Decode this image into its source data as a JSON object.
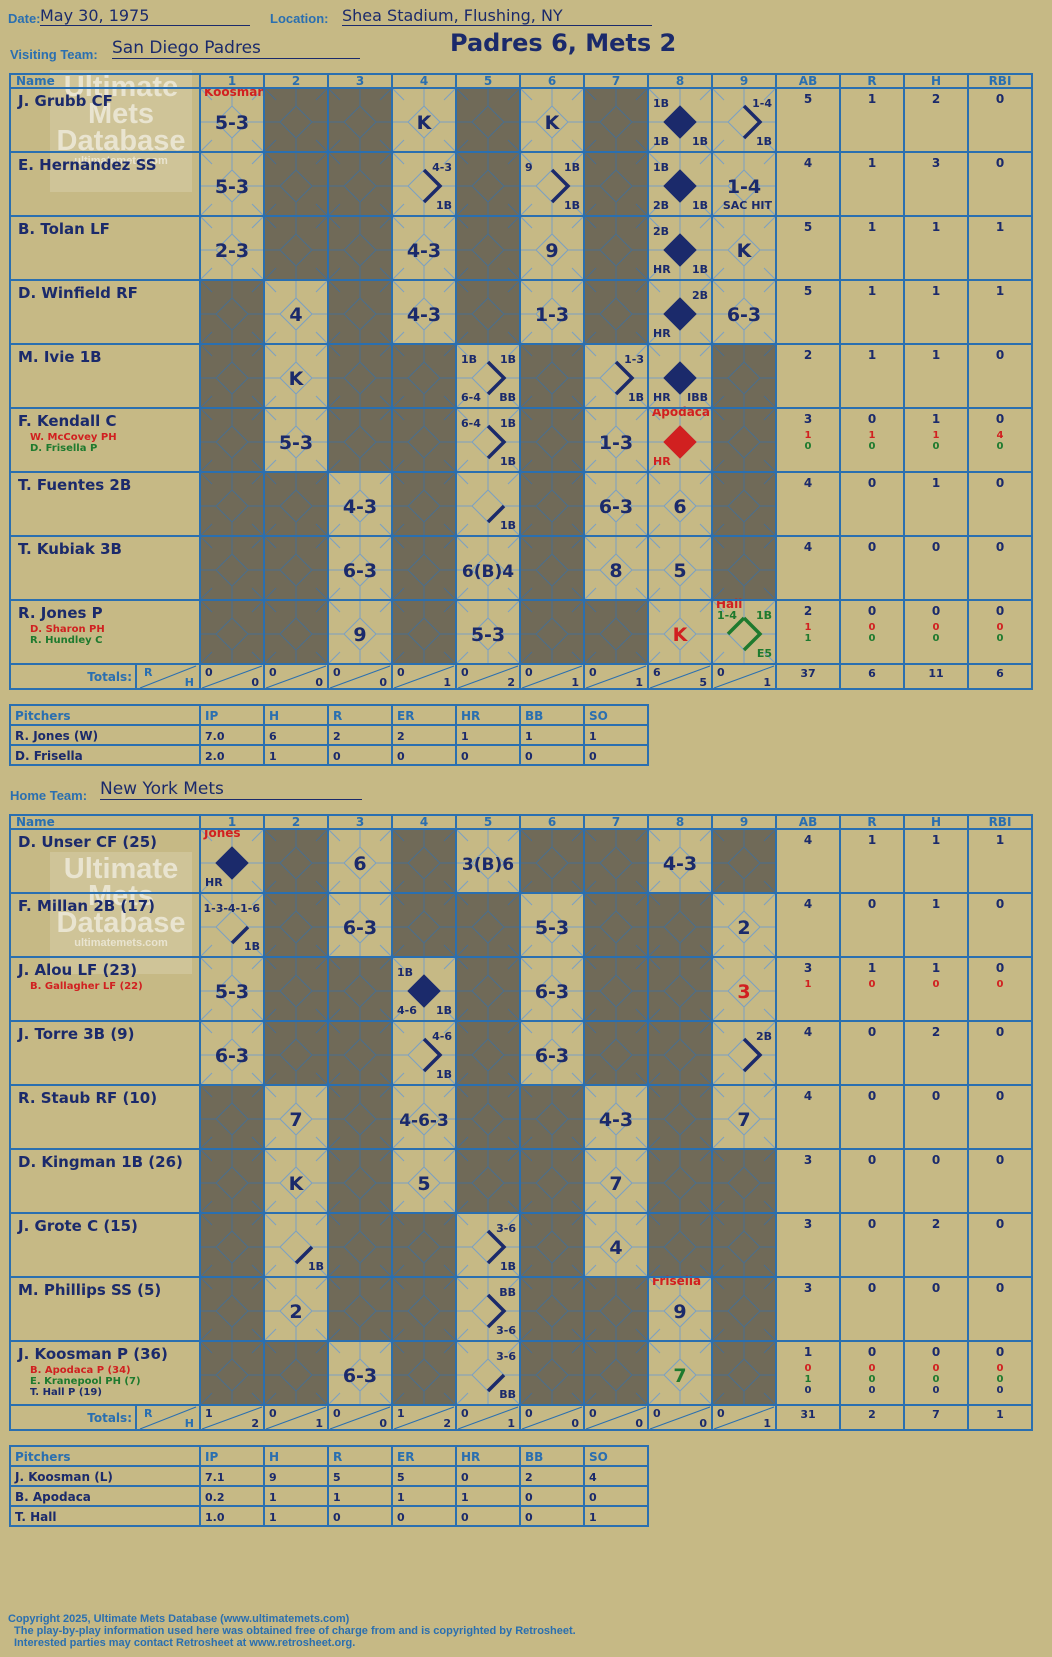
{
  "header": {
    "date_label": "Date:",
    "date": "May 30, 1975",
    "location_label": "Location:",
    "location": "Shea Stadium, Flushing, NY",
    "visiting_label": "Visiting Team:",
    "visiting_team": "San Diego Padres",
    "home_label": "Home Team:",
    "home_team": "New York Mets",
    "result": "Padres 6, Mets 2"
  },
  "watermark": [
    "Ultimate",
    "Mets",
    "Database",
    "ultimatemets.com"
  ],
  "columns": {
    "name": "Name",
    "innings": [
      "1",
      "2",
      "3",
      "4",
      "5",
      "6",
      "7",
      "8",
      "9"
    ],
    "stats": [
      "AB",
      "R",
      "H",
      "RBI"
    ],
    "totals": "Totals:",
    "r": "R",
    "h": "H"
  },
  "pitch_columns": [
    "Pitchers",
    "IP",
    "H",
    "R",
    "ER",
    "HR",
    "BB",
    "SO"
  ],
  "colors": {
    "background": "#c6b985",
    "grid": "#2a6fb0",
    "shade": "#706a58",
    "ink": "#1b2a6b",
    "red": "#d12020",
    "green": "#1e7a2e"
  },
  "visitors": {
    "players": [
      {
        "name": "J. Grubb CF",
        "subs": [],
        "stats": [
          [
            "5",
            "1",
            "2",
            "0"
          ]
        ]
      },
      {
        "name": "E. Hernandez SS",
        "subs": [],
        "stats": [
          [
            "4",
            "1",
            "3",
            "0"
          ]
        ]
      },
      {
        "name": "B. Tolan LF",
        "subs": [],
        "stats": [
          [
            "5",
            "1",
            "1",
            "1"
          ]
        ]
      },
      {
        "name": "D. Winfield RF",
        "subs": [],
        "stats": [
          [
            "5",
            "1",
            "1",
            "1"
          ]
        ]
      },
      {
        "name": "M. Ivie 1B",
        "subs": [],
        "stats": [
          [
            "2",
            "1",
            "1",
            "0"
          ]
        ]
      },
      {
        "name": "F. Kendall C",
        "subs": [
          {
            "name": "W. McCovey PH",
            "color": "red"
          },
          {
            "name": "D. Frisella P",
            "color": "green"
          }
        ],
        "stats": [
          [
            "3",
            "0",
            "1",
            "0"
          ],
          [
            "1",
            "1",
            "1",
            "4"
          ],
          [
            "0",
            "0",
            "0",
            "0"
          ]
        ]
      },
      {
        "name": "T. Fuentes 2B",
        "subs": [],
        "stats": [
          [
            "4",
            "0",
            "1",
            "0"
          ]
        ]
      },
      {
        "name": "T. Kubiak 3B",
        "subs": [],
        "stats": [
          [
            "4",
            "0",
            "0",
            "0"
          ]
        ]
      },
      {
        "name": "R. Jones P",
        "subs": [
          {
            "name": "D. Sharon PH",
            "color": "red"
          },
          {
            "name": "R. Hundley C",
            "color": "green"
          }
        ],
        "stats": [
          [
            "2",
            "0",
            "0",
            "0"
          ],
          [
            "1",
            "0",
            "0",
            "0"
          ],
          [
            "1",
            "0",
            "0",
            "0"
          ]
        ]
      }
    ],
    "grid": [
      [
        {
          "note": "Koosman",
          "nc": "red",
          "big": "5-3"
        },
        0,
        0,
        {
          "big": "K"
        },
        0,
        {
          "big": "K"
        },
        0,
        {
          "dia": "fill",
          "tl": "1B",
          "bl": "1B",
          "br": "1B"
        },
        {
          "path": "rp",
          "tr": "1-4",
          "br": "1B"
        }
      ],
      [
        {
          "big": "5-3"
        },
        0,
        0,
        {
          "path": "rp",
          "tr": "4-3",
          "br": "1B"
        },
        0,
        {
          "path": "rp",
          "tl": "9",
          "tr": "1B",
          "br": "1B"
        },
        0,
        {
          "dia": "fill",
          "tl": "1B",
          "bl": "2B",
          "br": "1B"
        },
        {
          "big": "1-4",
          "br": "SAC HIT"
        }
      ],
      [
        {
          "big": "2-3"
        },
        0,
        0,
        {
          "big": "4-3"
        },
        0,
        {
          "big": "9"
        },
        0,
        {
          "dia": "fill",
          "tl": "2B",
          "bl": "HR",
          "br": "1B"
        },
        {
          "big": "K"
        }
      ],
      [
        0,
        {
          "big": "4"
        },
        0,
        {
          "big": "4-3"
        },
        0,
        {
          "big": "1-3"
        },
        0,
        {
          "dia": "fill",
          "tr": "2B",
          "bl": "HR"
        },
        {
          "big": "6-3"
        }
      ],
      [
        0,
        {
          "big": "K"
        },
        0,
        0,
        {
          "path": "rp",
          "tl": "1B",
          "tr": "1B",
          "bl": "6-4",
          "br": "BB"
        },
        0,
        {
          "path": "rp",
          "tr": "1-3",
          "br": "1B"
        },
        {
          "dia": "fill",
          "bl": "HR",
          "br": "IBB"
        },
        0
      ],
      [
        0,
        {
          "big": "5-3"
        },
        0,
        0,
        {
          "path": "rp",
          "tl": "6-4",
          "tr": "1B",
          "br": "1B"
        },
        0,
        {
          "big": "1-3"
        },
        {
          "note": "Apodaca",
          "nc": "red",
          "dia": "red",
          "bl": "HR",
          "blc": "red"
        },
        0
      ],
      [
        0,
        0,
        {
          "big": "4-3"
        },
        0,
        {
          "path": "br",
          "br": "1B"
        },
        0,
        {
          "big": "6-3"
        },
        {
          "big": "6"
        },
        0
      ],
      [
        0,
        0,
        {
          "big": "6-3"
        },
        0,
        {
          "big": "6(B)4"
        },
        0,
        {
          "big": "8"
        },
        {
          "big": "5"
        },
        0
      ],
      [
        0,
        0,
        {
          "big": "9"
        },
        0,
        {
          "big": "5-3"
        },
        0,
        0,
        {
          "big": "K",
          "bigc": "red"
        },
        {
          "note": "Hall",
          "nc": "red",
          "path": "gr",
          "tl": "1-4",
          "tr": "1B",
          "br": "E5",
          "c": "green"
        }
      ]
    ],
    "totals": [
      [
        "0",
        "0"
      ],
      [
        "0",
        "0"
      ],
      [
        "0",
        "0"
      ],
      [
        "0",
        "1"
      ],
      [
        "0",
        "2"
      ],
      [
        "0",
        "1"
      ],
      [
        "0",
        "1"
      ],
      [
        "6",
        "5"
      ],
      [
        "0",
        "1"
      ]
    ],
    "totals_stats": [
      "37",
      "6",
      "11",
      "6"
    ],
    "pitchers": [
      [
        "R. Jones (W)",
        "7.0",
        "6",
        "2",
        "2",
        "1",
        "1",
        "1"
      ],
      [
        "D. Frisella",
        "2.0",
        "1",
        "0",
        "0",
        "0",
        "0",
        "0"
      ]
    ]
  },
  "home": {
    "players": [
      {
        "name": "D. Unser CF (25)",
        "subs": [],
        "stats": [
          [
            "4",
            "1",
            "1",
            "1"
          ]
        ]
      },
      {
        "name": "F. Millan 2B (17)",
        "subs": [],
        "stats": [
          [
            "4",
            "0",
            "1",
            "0"
          ]
        ]
      },
      {
        "name": "J. Alou LF (23)",
        "subs": [
          {
            "name": "B. Gallagher LF (22)",
            "color": "red"
          }
        ],
        "stats": [
          [
            "3",
            "1",
            "1",
            "0"
          ],
          [
            "1",
            "0",
            "0",
            "0"
          ]
        ]
      },
      {
        "name": "J. Torre 3B (9)",
        "subs": [],
        "stats": [
          [
            "4",
            "0",
            "2",
            "0"
          ]
        ]
      },
      {
        "name": "R. Staub RF (10)",
        "subs": [],
        "stats": [
          [
            "4",
            "0",
            "0",
            "0"
          ]
        ]
      },
      {
        "name": "D. Kingman 1B (26)",
        "subs": [],
        "stats": [
          [
            "3",
            "0",
            "0",
            "0"
          ]
        ]
      },
      {
        "name": "J. Grote C (15)",
        "subs": [],
        "stats": [
          [
            "3",
            "0",
            "2",
            "0"
          ]
        ]
      },
      {
        "name": "M. Phillips SS (5)",
        "subs": [],
        "stats": [
          [
            "3",
            "0",
            "0",
            "0"
          ]
        ]
      },
      {
        "name": "J. Koosman P (36)",
        "subs": [
          {
            "name": "B. Apodaca P (34)",
            "color": "red"
          },
          {
            "name": "E. Kranepool PH (7)",
            "color": "green"
          },
          {
            "name": "T. Hall P (19)",
            "color": "ink"
          }
        ],
        "stats": [
          [
            "1",
            "0",
            "0",
            "0"
          ],
          [
            "0",
            "0",
            "0",
            "0"
          ],
          [
            "1",
            "0",
            "0",
            "0"
          ],
          [
            "0",
            "0",
            "0",
            "0"
          ]
        ]
      }
    ],
    "grid": [
      [
        {
          "note": "Jones",
          "nc": "red",
          "dia": "fill",
          "bl": "HR"
        },
        0,
        {
          "big": "6"
        },
        0,
        {
          "big": "3(B)6"
        },
        0,
        0,
        {
          "big": "4-3"
        },
        0
      ],
      [
        {
          "path": "br",
          "tr": "1-3-4-1-6",
          "br": "1B"
        },
        0,
        {
          "big": "6-3"
        },
        0,
        0,
        {
          "big": "5-3"
        },
        0,
        0,
        {
          "big": "2"
        }
      ],
      [
        {
          "big": "5-3"
        },
        0,
        0,
        {
          "dia": "fill",
          "tl": "1B",
          "bl": "4-6",
          "br": "1B"
        },
        0,
        {
          "big": "6-3"
        },
        0,
        0,
        {
          "big": "3",
          "bigc": "red"
        }
      ],
      [
        {
          "big": "6-3"
        },
        0,
        0,
        {
          "path": "rp",
          "tr": "4-6",
          "br": "1B"
        },
        0,
        {
          "big": "6-3"
        },
        0,
        0,
        {
          "path": "rp",
          "tr": "2B"
        }
      ],
      [
        0,
        {
          "big": "7"
        },
        0,
        {
          "big": "4-6-3"
        },
        0,
        0,
        {
          "big": "4-3"
        },
        0,
        {
          "big": "7"
        }
      ],
      [
        0,
        {
          "big": "K"
        },
        0,
        {
          "big": "5"
        },
        0,
        0,
        {
          "big": "7"
        },
        0,
        0
      ],
      [
        0,
        {
          "path": "br",
          "br": "1B"
        },
        0,
        0,
        {
          "path": "rp",
          "tr": "3-6",
          "br": "1B"
        },
        0,
        {
          "big": "4"
        },
        0,
        0
      ],
      [
        0,
        {
          "big": "2"
        },
        0,
        0,
        {
          "path": "rp",
          "tr": "BB",
          "br": "3-6"
        },
        0,
        0,
        {
          "note": "Frisella",
          "nc": "red",
          "big": "9"
        },
        0
      ],
      [
        0,
        0,
        {
          "big": "6-3"
        },
        0,
        {
          "path": "br",
          "tr": "3-6",
          "br": "BB"
        },
        0,
        0,
        {
          "big": "7",
          "bigc": "green"
        },
        0
      ]
    ],
    "totals": [
      [
        "1",
        "2"
      ],
      [
        "0",
        "1"
      ],
      [
        "0",
        "0"
      ],
      [
        "1",
        "2"
      ],
      [
        "0",
        "1"
      ],
      [
        "0",
        "0"
      ],
      [
        "0",
        "0"
      ],
      [
        "0",
        "0"
      ],
      [
        "0",
        "1"
      ]
    ],
    "totals_stats": [
      "31",
      "2",
      "7",
      "1"
    ],
    "pitchers": [
      [
        "J. Koosman (L)",
        "7.1",
        "9",
        "5",
        "5",
        "0",
        "2",
        "4"
      ],
      [
        "B. Apodaca",
        "0.2",
        "1",
        "1",
        "1",
        "1",
        "0",
        "0"
      ],
      [
        "T. Hall",
        "1.0",
        "1",
        "0",
        "0",
        "0",
        "0",
        "1"
      ]
    ]
  },
  "footer": [
    "Copyright 2025, Ultimate Mets Database (www.ultimatemets.com)",
    "The play-by-play information used here was obtained free of charge from and is copyrighted by Retrosheet.",
    "Interested parties may contact Retrosheet at www.retrosheet.org."
  ]
}
